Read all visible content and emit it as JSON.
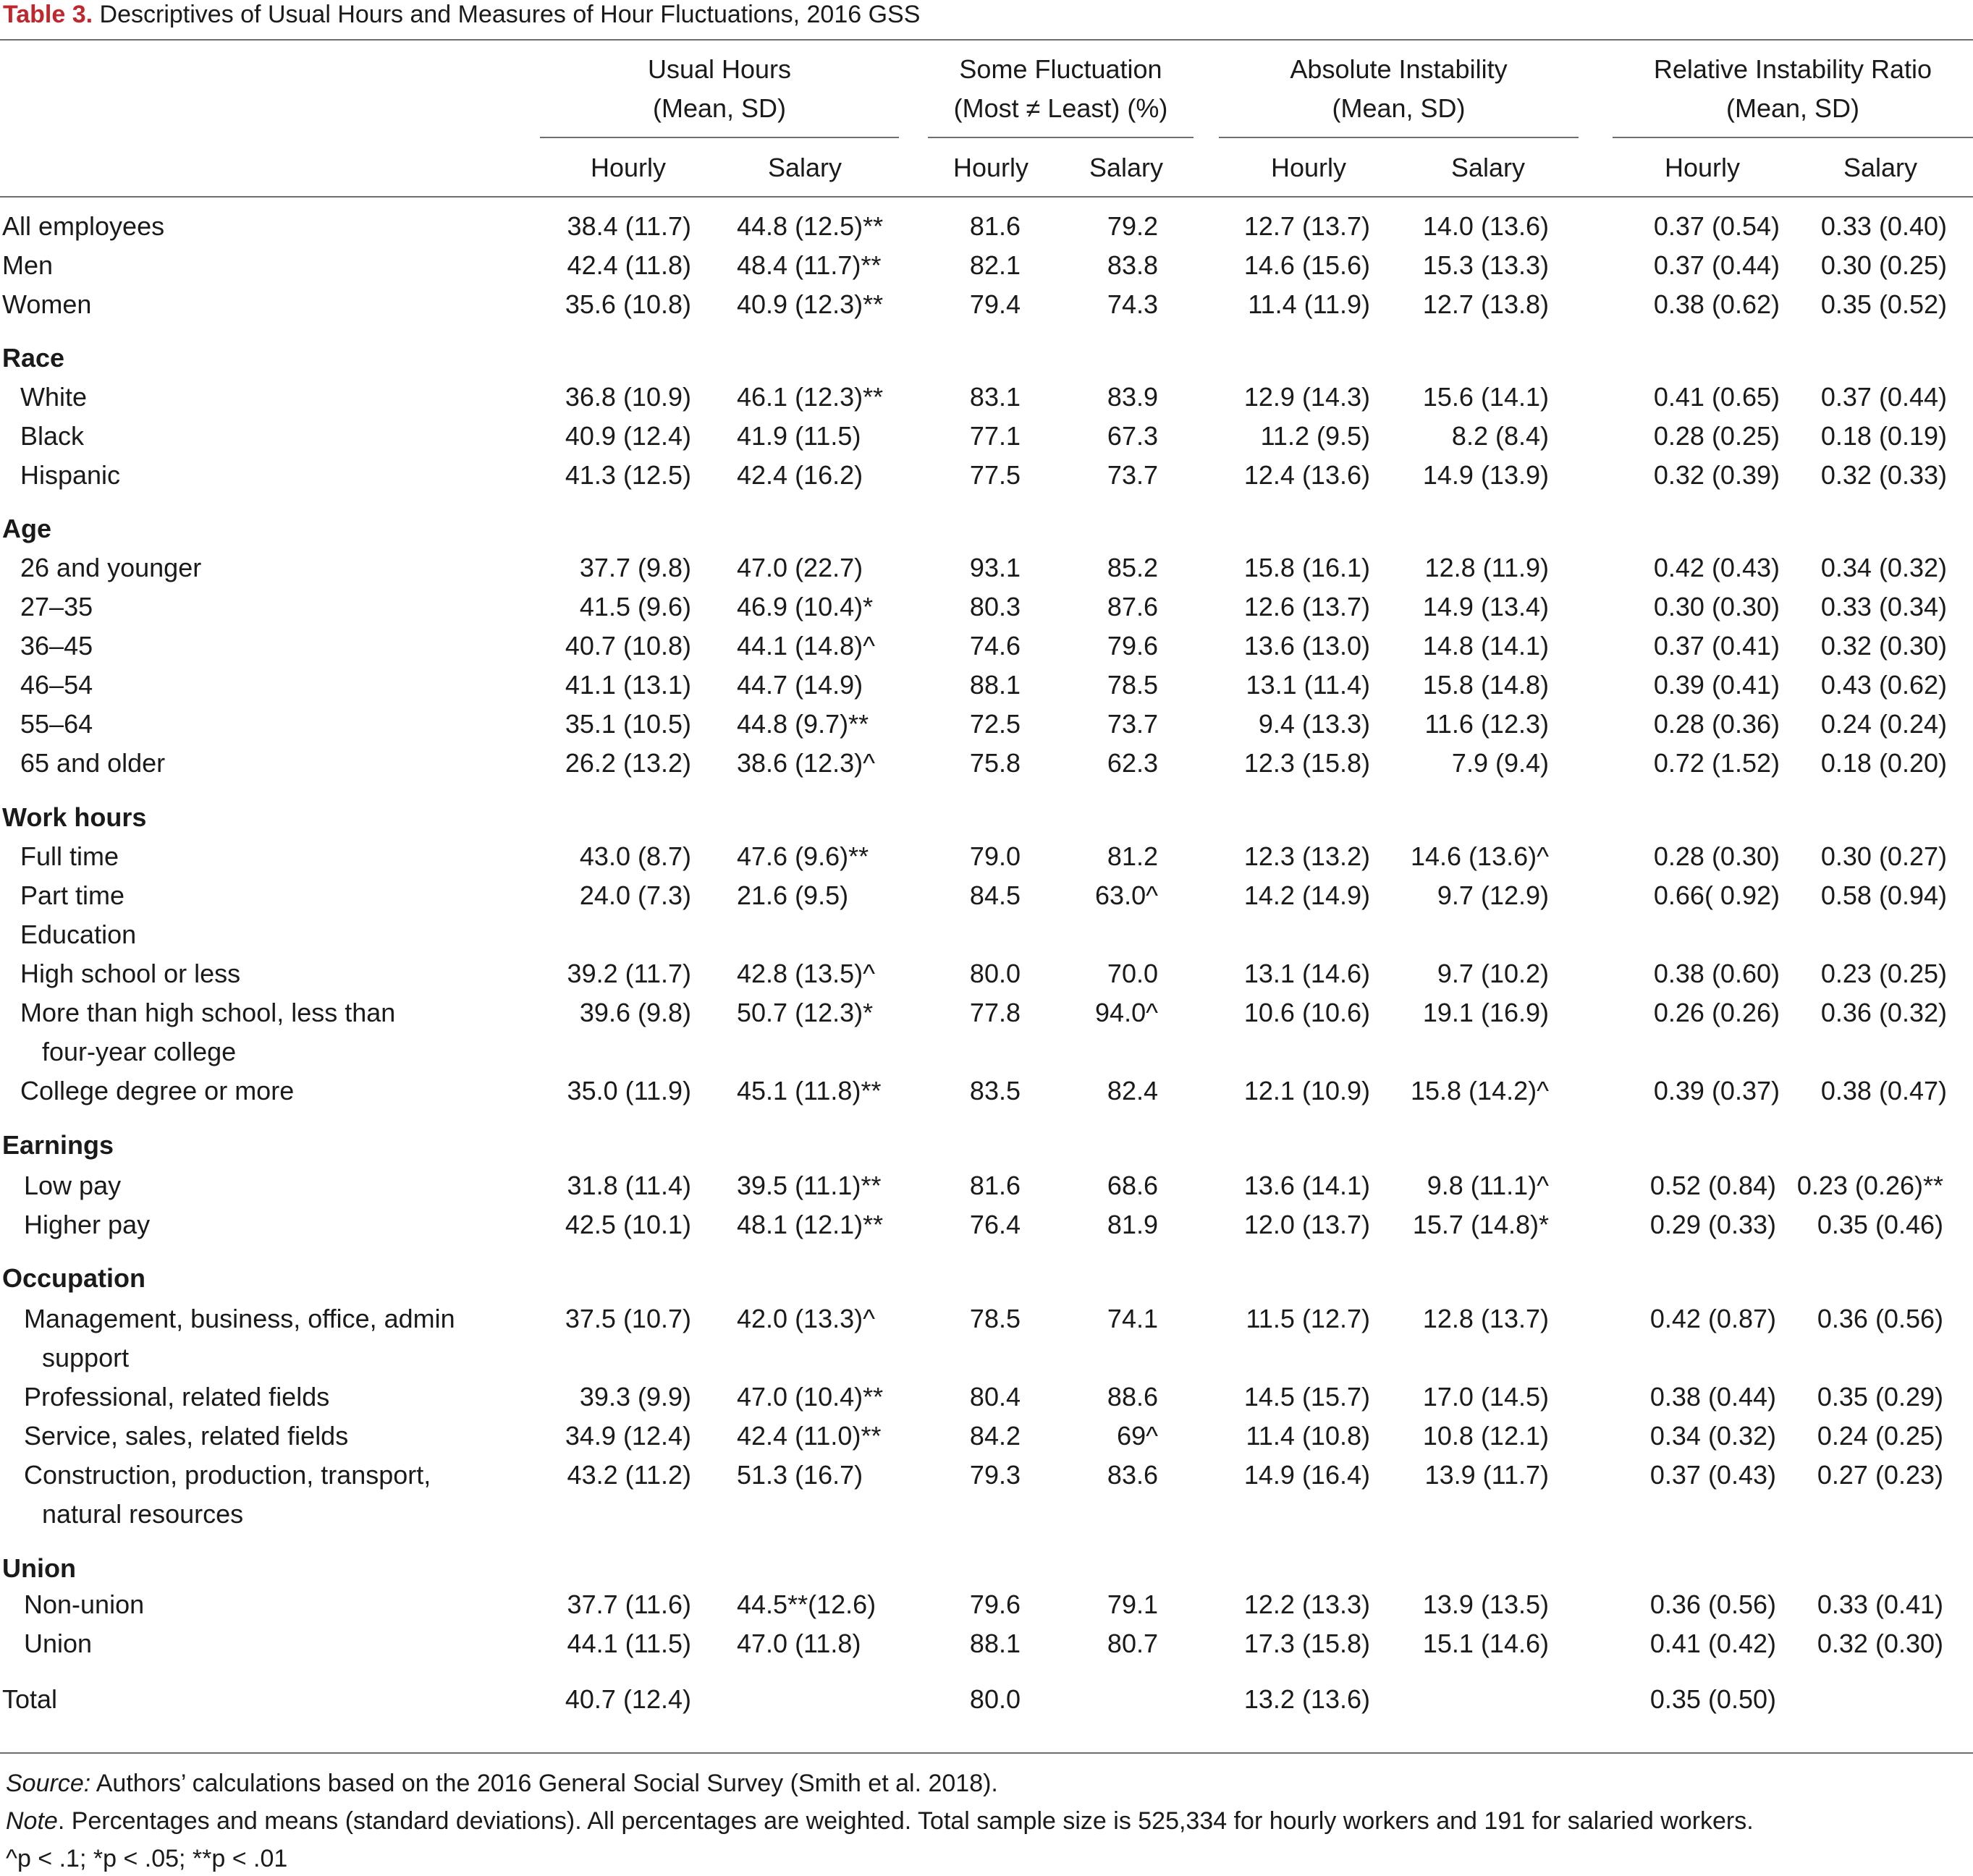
{
  "table": {
    "title_label": "Table 3.",
    "title_text": "Descriptives of Usual Hours and Measures of Hour Fluctuations, 2016 GSS",
    "group_headers": [
      {
        "line1": "Usual Hours",
        "line2": "(Mean, SD)"
      },
      {
        "line1": "Some Fluctuation",
        "line2": "(Most ≠ Least) (%)"
      },
      {
        "line1": "Absolute Instability",
        "line2": "(Mean, SD)"
      },
      {
        "line1": "Relative Instability Ratio",
        "line2": "(Mean, SD)"
      }
    ],
    "sub_headers": [
      "Hourly",
      "Salary",
      "Hourly",
      "Salary",
      "Hourly",
      "Salary",
      "Hourly",
      "Salary"
    ],
    "rows": [
      {
        "label": "All employees",
        "cells": [
          "38.4 (11.7)",
          "44.8 (12.5)**",
          "81.6",
          "79.2",
          "12.7 (13.7)",
          "14.0 (13.6)",
          "0.37 (0.54)",
          "0.33  (0.40)"
        ]
      },
      {
        "label": "Men",
        "cells": [
          "42.4 (11.8)",
          "48.4 (11.7)**",
          "82.1",
          "83.8",
          "14.6 (15.6)",
          "15.3 (13.3)",
          "0.37 (0.44)",
          "0.30  (0.25)"
        ]
      },
      {
        "label": "Women",
        "cells": [
          "35.6 (10.8)",
          "40.9 (12.3)**",
          "79.4",
          "74.3",
          "11.4 (11.9)",
          "12.7 (13.8)",
          "0.38 (0.62)",
          "0.35  (0.52)"
        ]
      },
      {
        "label": "Race"
      },
      {
        "label": "White",
        "cells": [
          "36.8 (10.9)",
          "46.1  (12.3)**",
          "83.1",
          "83.9",
          "12.9 (14.3)",
          "15.6 (14.1)",
          "0.41 (0.65)",
          "0.37  (0.44)"
        ]
      },
      {
        "label": "Black",
        "cells": [
          "40.9 (12.4)",
          "41.9  (11.5)",
          "77.1",
          "67.3",
          "11.2   (9.5)",
          "8.2   (8.4)",
          "0.28 (0.25)",
          "0.18  (0.19)"
        ]
      },
      {
        "label": "Hispanic",
        "cells": [
          "41.3 (12.5)",
          "42.4  (16.2)",
          "77.5",
          "73.7",
          "12.4 (13.6)",
          "14.9 (13.9)",
          "0.32 (0.39)",
          "0.32  (0.33)"
        ]
      },
      {
        "label": "Age"
      },
      {
        "label": "26 and younger",
        "cells": [
          "37.7   (9.8)",
          "47.0  (22.7)",
          "93.1",
          "85.2",
          "15.8 (16.1)",
          "12.8 (11.9)",
          "0.42 (0.43)",
          "0.34  (0.32)"
        ]
      },
      {
        "label": "27–35",
        "cells": [
          "41.5   (9.6)",
          "46.9  (10.4)*",
          "80.3",
          "87.6",
          "12.6 (13.7)",
          "14.9 (13.4)",
          "0.30 (0.30)",
          "0.33  (0.34)"
        ]
      },
      {
        "label": "36–45",
        "cells": [
          "40.7 (10.8)",
          "44.1  (14.8)^",
          "74.6",
          "79.6",
          "13.6 (13.0)",
          "14.8 (14.1)",
          "0.37 (0.41)",
          "0.32  (0.30)"
        ]
      },
      {
        "label": "46–54",
        "cells": [
          "41.1 (13.1)",
          "44.7  (14.9)",
          "88.1",
          "78.5",
          "13.1 (11.4)",
          "15.8 (14.8)",
          "0.39 (0.41)",
          "0.43  (0.62)"
        ]
      },
      {
        "label": "55–64",
        "cells": [
          "35.1 (10.5)",
          "44.8     (9.7)**",
          "72.5",
          "73.7",
          "9.4 (13.3)",
          "11.6 (12.3)",
          "0.28 (0.36)",
          "0.24  (0.24)"
        ]
      },
      {
        "label": "65 and older",
        "cells": [
          "26.2 (13.2)",
          "38.6  (12.3)^",
          "75.8",
          "62.3",
          "12.3 (15.8)",
          "7.9   (9.4)",
          "0.72 (1.52)",
          "0.18  (0.20)"
        ]
      },
      {
        "label": "Work hours"
      },
      {
        "label": "Full time",
        "cells": [
          "43.0   (8.7)",
          "47.6     (9.6)**",
          "79.0",
          "81.2",
          "12.3 (13.2)",
          "14.6 (13.6)^",
          "0.28 (0.30)",
          "0.30  (0.27)"
        ]
      },
      {
        "label": "Part time",
        "cells": [
          "24.0   (7.3)",
          "21.6     (9.5)",
          "84.5",
          "63.0^",
          "14.2 (14.9)",
          "9.7 (12.9)",
          "0.66( 0.92)",
          "0.58  (0.94)"
        ]
      },
      {
        "label": "Education"
      },
      {
        "label": "High school or less",
        "cells": [
          "39.2 (11.7)",
          "42.8  (13.5)^",
          "80.0",
          "70.0",
          "13.1 (14.6)",
          "9.7 (10.2)",
          "0.38 (0.60)",
          "0.23  (0.25)"
        ]
      },
      {
        "label": "More than high school, less than",
        "cells": [
          "39.6   (9.8)",
          "50.7  (12.3)*",
          "77.8",
          "94.0^",
          "10.6 (10.6)",
          "19.1 (16.9)",
          "0.26 (0.26)",
          "0.36  (0.32)"
        ]
      },
      {
        "label": "four-year college"
      },
      {
        "label": "College degree or more",
        "cells": [
          "35.0 (11.9)",
          "45.1  (11.8)**",
          "83.5",
          "82.4",
          "12.1 (10.9)",
          "15.8 (14.2)^",
          "0.39 (0.37)",
          "0.38  (0.47)"
        ]
      },
      {
        "label": "Earnings"
      },
      {
        "label": "Low pay",
        "cells": [
          "31.8 (11.4)",
          "39.5  (11.1)**",
          "81.6",
          "68.6",
          "13.6 (14.1)",
          "9.8 (11.1)^",
          "0.52 (0.84)",
          "0.23  (0.26)**"
        ]
      },
      {
        "label": "Higher pay",
        "cells": [
          "42.5 (10.1)",
          "48.1  (12.1)**",
          "76.4",
          "81.9",
          "12.0 (13.7)",
          "15.7 (14.8)*",
          "0.29 (0.33)",
          "0.35  (0.46)"
        ]
      },
      {
        "label": "Occupation"
      },
      {
        "label": "Management, business, office, admin",
        "cells": [
          "37.5 (10.7)",
          "42.0  (13.3)^",
          "78.5",
          "74.1",
          "11.5 (12.7)",
          "12.8 (13.7)",
          "0.42 (0.87)",
          "0.36  (0.56)"
        ]
      },
      {
        "label": "support"
      },
      {
        "label": "Professional, related fields",
        "cells": [
          "39.3   (9.9)",
          "47.0  (10.4)**",
          "80.4",
          "88.6",
          "14.5 (15.7)",
          "17.0 (14.5)",
          "0.38 (0.44)",
          "0.35  (0.29)"
        ]
      },
      {
        "label": "Service, sales, related fields",
        "cells": [
          "34.9 (12.4)",
          "42.4  (11.0)**",
          "84.2",
          "69^",
          "11.4 (10.8)",
          "10.8 (12.1)",
          "0.34 (0.32)",
          "0.24  (0.25)"
        ]
      },
      {
        "label": "Construction, production, transport,",
        "cells": [
          "43.2 (11.2)",
          "51.3  (16.7)",
          "79.3",
          "83.6",
          "14.9 (16.4)",
          "13.9 (11.7)",
          "0.37 (0.43)",
          "0.27  (0.23)"
        ]
      },
      {
        "label": "natural resources"
      },
      {
        "label": "Union"
      },
      {
        "label": "Non-union",
        "cells": [
          "37.7 (11.6)",
          "44.5**(12.6)",
          "79.6",
          "79.1",
          "12.2 (13.3)",
          "13.9 (13.5)",
          "0.36 (0.56)",
          "0.33  (0.41)"
        ]
      },
      {
        "label": "Union",
        "cells": [
          "44.1 (11.5)",
          "47.0  (11.8)",
          "88.1",
          "80.7",
          "17.3 (15.8)",
          "15.1 (14.6)",
          "0.41 (0.42)",
          "0.32  (0.30)"
        ]
      },
      {
        "label": "Total",
        "cells": [
          "40.7 (12.4)",
          "",
          "80.0",
          "",
          "13.2 (13.6)",
          "",
          "0.35 (0.50)",
          ""
        ]
      }
    ],
    "source_label": "Source:",
    "source_text": " Authors’ calculations based on the 2016 General Social Survey (Smith et al. 2018).",
    "note_label": "Note",
    "note_text": ". Percentages and means (standard deviations). All percentages are weighted. Total sample size is 525,334 for hourly workers and 191 for salaried workers.",
    "sig_text": "^p < .1; *p < .05; **p < .01"
  }
}
